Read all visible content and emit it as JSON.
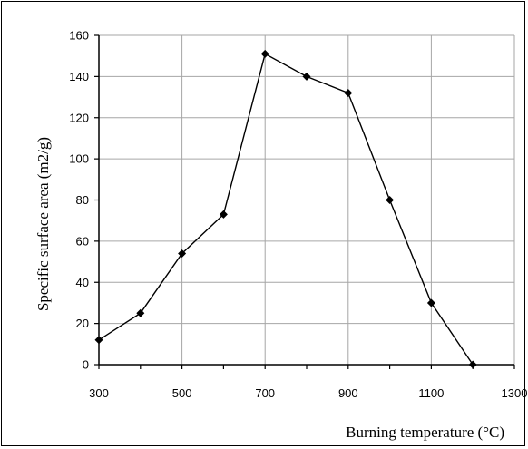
{
  "chart_data": {
    "type": "line",
    "title": "",
    "xlabel": "Burning temperature (°C)",
    "ylabel": "Specific surface area (m2/g)",
    "x": [
      300,
      400,
      500,
      600,
      700,
      800,
      900,
      1000,
      1100,
      1200
    ],
    "series": [
      {
        "values": [
          12,
          25,
          54,
          73,
          151,
          140,
          132,
          80,
          30,
          0
        ]
      }
    ],
    "xlim": [
      300,
      1300
    ],
    "ylim": [
      0,
      160
    ],
    "xticks": [
      "300",
      "500",
      "700",
      "900",
      "1100",
      "1300"
    ],
    "yticks": [
      "0",
      "20",
      "40",
      "60",
      "80",
      "100",
      "120",
      "140",
      "160"
    ],
    "xtick_values": [
      300,
      500,
      700,
      900,
      1100,
      1300
    ],
    "ytick_values": [
      0,
      20,
      40,
      60,
      80,
      100,
      120,
      140,
      160
    ],
    "x_minor_step": 100,
    "grid": true,
    "legend": "none",
    "colors": {
      "line": "#000000",
      "marker": "#000000",
      "grid": "#a6a6a6",
      "axis": "#000000"
    },
    "marker": "diamond"
  }
}
